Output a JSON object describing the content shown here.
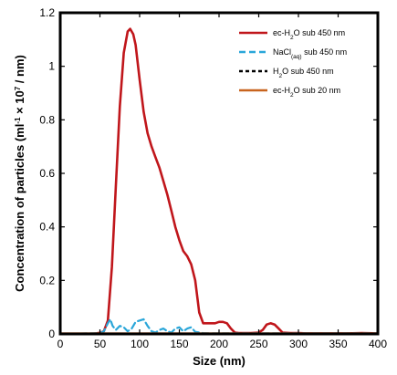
{
  "chart_data": {
    "type": "line",
    "xlabel": "Size (nm)",
    "ylabel": {
      "pre": "Concentration of particles (ml",
      "sup1": "-1",
      "mid": " × 10",
      "sup2": "7",
      "post": " / nm)"
    },
    "xlim": [
      0,
      400
    ],
    "ylim": [
      0,
      1.2
    ],
    "xticks": [
      "0",
      "50",
      "100",
      "150",
      "200",
      "250",
      "300",
      "350",
      "400"
    ],
    "yticks": [
      "0",
      "0.2",
      "0.4",
      "0.6",
      "0.8",
      "1",
      "1.2"
    ],
    "grid": false,
    "legend_position": "top-right",
    "series": [
      {
        "legend": {
          "pre": "ec-H",
          "sub": "2",
          "post": "O sub 450 nm"
        },
        "color": "#c0161b",
        "dash": "solid",
        "x": [
          0,
          40,
          50,
          55,
          60,
          65,
          70,
          75,
          80,
          85,
          88,
          92,
          95,
          100,
          105,
          110,
          115,
          120,
          125,
          130,
          135,
          140,
          145,
          150,
          155,
          160,
          165,
          170,
          175,
          180,
          185,
          190,
          195,
          200,
          205,
          210,
          215,
          220,
          225,
          230,
          240,
          250,
          255,
          260,
          265,
          270,
          275,
          280,
          290,
          300,
          310,
          320,
          340,
          360,
          380,
          400
        ],
        "y": [
          0,
          0,
          0.004,
          0.01,
          0.05,
          0.25,
          0.55,
          0.85,
          1.05,
          1.13,
          1.14,
          1.12,
          1.08,
          0.95,
          0.83,
          0.75,
          0.7,
          0.66,
          0.62,
          0.57,
          0.52,
          0.46,
          0.4,
          0.35,
          0.31,
          0.29,
          0.26,
          0.2,
          0.08,
          0.04,
          0.04,
          0.04,
          0.04,
          0.045,
          0.045,
          0.04,
          0.02,
          0.005,
          0.003,
          0.003,
          0.003,
          0.005,
          0.015,
          0.035,
          0.04,
          0.035,
          0.02,
          0.005,
          0.003,
          0.003,
          0.002,
          0.002,
          0.002,
          0.002,
          0.003,
          0.002
        ]
      },
      {
        "legend": {
          "pre": "NaCl",
          "sub": "(aq)",
          "post": " sub 450 nm"
        },
        "color": "#2aa6d9",
        "dash": "dashed",
        "x": [
          0,
          50,
          55,
          60,
          63,
          66,
          70,
          75,
          80,
          85,
          90,
          95,
          100,
          105,
          110,
          115,
          120,
          125,
          130,
          135,
          140,
          145,
          150,
          155,
          160,
          165,
          170,
          180,
          190,
          200,
          220,
          250,
          300,
          350,
          400
        ],
        "y": [
          0,
          0.003,
          0.01,
          0.04,
          0.055,
          0.03,
          0.015,
          0.03,
          0.025,
          0.01,
          0.02,
          0.045,
          0.05,
          0.055,
          0.03,
          0.01,
          0.005,
          0.015,
          0.02,
          0.01,
          0.005,
          0.02,
          0.025,
          0.01,
          0.02,
          0.025,
          0.008,
          0.003,
          0.002,
          0.002,
          0.002,
          0.002,
          0.002,
          0.002,
          0.002
        ]
      },
      {
        "legend": {
          "pre": "H",
          "sub": "2",
          "post": "O sub 450 nm"
        },
        "color": "#000000",
        "dash": "dashed",
        "x": [
          0,
          50,
          100,
          150,
          200,
          250,
          300,
          350,
          400
        ],
        "y": [
          0.001,
          0.001,
          0.001,
          0.001,
          0.001,
          0.001,
          0.001,
          0.001,
          0.001
        ]
      },
      {
        "legend": {
          "pre": "ec-H",
          "sub": "2",
          "post": "O sub 20 nm"
        },
        "color": "#c8641e",
        "dash": "solid",
        "x": [
          0,
          50,
          100,
          150,
          200,
          250,
          300,
          350,
          400
        ],
        "y": [
          0.002,
          0.002,
          0.002,
          0.002,
          0.002,
          0.002,
          0.002,
          0.002,
          0.002
        ]
      }
    ]
  },
  "colors": {
    "frame": "#000000",
    "background": "#ffffff"
  }
}
